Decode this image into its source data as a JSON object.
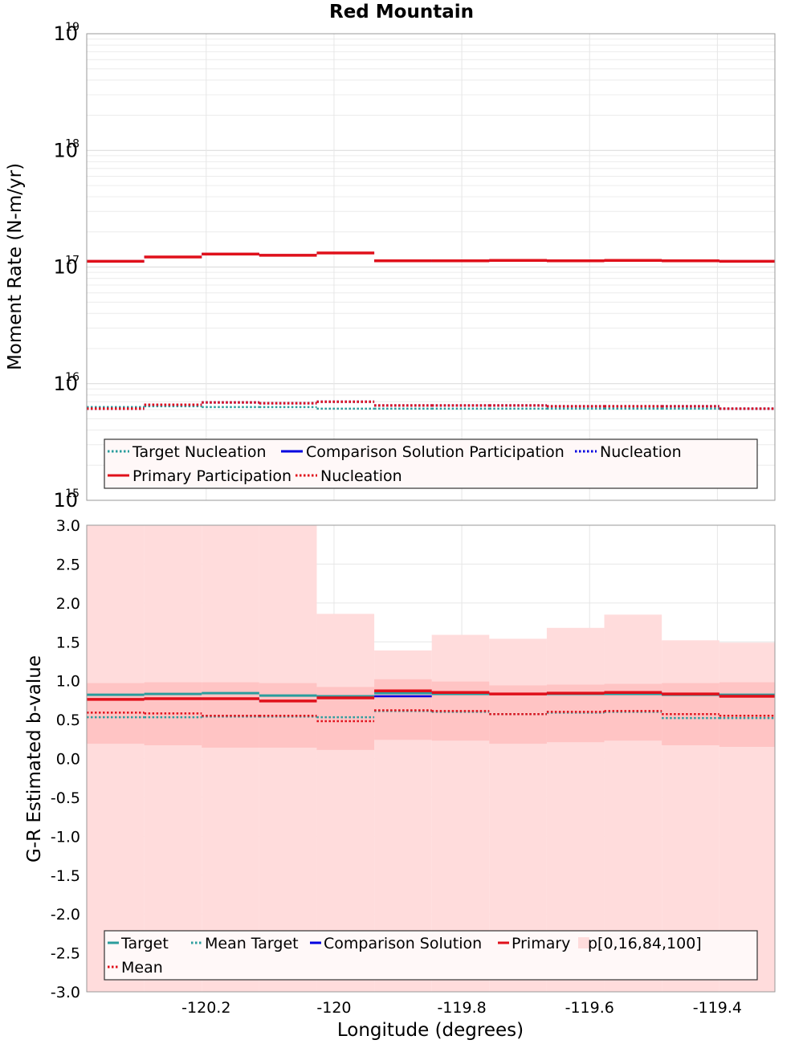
{
  "title": "Red Mountain",
  "colors": {
    "target": "#2a9d9d",
    "comparison": "#0000e0",
    "primary": "#e0101a",
    "band_outer": "#ffdcdc",
    "band_inner": "#ffc4c4",
    "legend_fill": "#fff8f8"
  },
  "chart_data": [
    {
      "type": "line",
      "title": "Red Mountain",
      "xlabel": "",
      "ylabel": "Moment Rate (N-m/yr)",
      "yscale": "log",
      "ylim": [
        1000000000000000.0,
        1e+19
      ],
      "xlim": [
        -120.387,
        -119.31
      ],
      "x_edges": [
        -120.387,
        -120.297,
        -120.207,
        -120.117,
        -120.027,
        -119.937,
        -119.847,
        -119.757,
        -119.667,
        -119.577,
        -119.487,
        -119.397,
        -119.31
      ],
      "y_ticks": [
        {
          "base": "10",
          "exp": "15",
          "value": 1000000000000000.0
        },
        {
          "base": "10",
          "exp": "16",
          "value": 1e+16
        },
        {
          "base": "10",
          "exp": "17",
          "value": 1e+17
        },
        {
          "base": "10",
          "exp": "18",
          "value": 1e+18
        },
        {
          "base": "10",
          "exp": "19",
          "value": 1e+19
        }
      ],
      "grid": true,
      "legend_position": "bottom",
      "legend": [
        {
          "label": "Target Nucleation",
          "color": "#2a9d9d",
          "style": "dotted"
        },
        {
          "label": "Comparison Solution Participation",
          "color": "#0000e0",
          "style": "solid"
        },
        {
          "label": "Nucleation",
          "color": "#0000e0",
          "style": "dotted"
        },
        {
          "label": "Primary Participation",
          "color": "#e0101a",
          "style": "solid"
        },
        {
          "label": "Nucleation",
          "color": "#e0101a",
          "style": "dotted"
        }
      ],
      "series": [
        {
          "name": "Target Nucleation",
          "style": "dotted",
          "color": "#2a9d9d",
          "values": [
            6300000000000000.0,
            6400000000000000.0,
            6300000000000000.0,
            6300000000000000.0,
            6100000000000000.0,
            6100000000000000.0,
            6100000000000000.0,
            6100000000000000.0,
            6100000000000000.0,
            6100000000000000.0,
            6100000000000000.0,
            6100000000000000.0
          ]
        },
        {
          "name": "Comparison Solution Participation",
          "style": "solid",
          "color": "#0000e0",
          "values": [
            1.12e+17,
            1.22e+17,
            1.29e+17,
            1.26e+17,
            1.32e+17,
            1.13e+17,
            1.13e+17,
            1.14e+17,
            1.13e+17,
            1.14e+17,
            1.13e+17,
            1.12e+17
          ]
        },
        {
          "name": "Nucleation",
          "style": "dotted",
          "color": "#0000e0",
          "values": [
            6100000000000000.0,
            6600000000000000.0,
            6900000000000000.0,
            6800000000000000.0,
            7000000000000000.0,
            6500000000000000.0,
            6500000000000000.0,
            6500000000000000.0,
            6400000000000000.0,
            6400000000000000.0,
            6400000000000000.0,
            6100000000000000.0
          ]
        },
        {
          "name": "Primary Participation",
          "style": "solid",
          "color": "#e0101a",
          "values": [
            1.12e+17,
            1.22e+17,
            1.29e+17,
            1.26e+17,
            1.32e+17,
            1.13e+17,
            1.13e+17,
            1.14e+17,
            1.13e+17,
            1.14e+17,
            1.13e+17,
            1.12e+17
          ]
        },
        {
          "name": "Nucleation",
          "style": "dotted",
          "color": "#e0101a",
          "values": [
            6100000000000000.0,
            6600000000000000.0,
            6900000000000000.0,
            6800000000000000.0,
            7000000000000000.0,
            6500000000000000.0,
            6500000000000000.0,
            6500000000000000.0,
            6400000000000000.0,
            6400000000000000.0,
            6400000000000000.0,
            6100000000000000.0
          ]
        }
      ]
    },
    {
      "type": "line",
      "title": "",
      "xlabel": "Longitude (degrees)",
      "ylabel": "G-R Estimated b-value",
      "ylim": [
        -3.0,
        3.0
      ],
      "xlim": [
        -120.387,
        -119.31
      ],
      "x_edges": [
        -120.387,
        -120.297,
        -120.207,
        -120.117,
        -120.027,
        -119.937,
        -119.847,
        -119.757,
        -119.667,
        -119.577,
        -119.487,
        -119.397,
        -119.31
      ],
      "x_ticks": [
        {
          "label": "-120.2",
          "value": -120.2
        },
        {
          "label": "-120",
          "value": -120.0
        },
        {
          "label": "-119.8",
          "value": -119.8
        },
        {
          "label": "-119.6",
          "value": -119.6
        },
        {
          "label": "-119.4",
          "value": -119.4
        }
      ],
      "y_ticks": [
        "3.0",
        "2.5",
        "2.0",
        "1.5",
        "1.0",
        "0.5",
        "0.0",
        "-0.5",
        "-1.0",
        "-1.5",
        "-2.0",
        "-2.5",
        "-3.0"
      ],
      "grid": true,
      "legend_position": "bottom",
      "legend": [
        {
          "label": "Target",
          "color": "#2a9d9d",
          "style": "solid"
        },
        {
          "label": "Mean Target",
          "color": "#2a9d9d",
          "style": "dotted"
        },
        {
          "label": "Comparison Solution",
          "color": "#0000e0",
          "style": "solid"
        },
        {
          "label": "Primary",
          "color": "#e0101a",
          "style": "solid"
        },
        {
          "label": "p[0,16,84,100]",
          "color": "#ffdcdc",
          "style": "fill"
        },
        {
          "label": "Mean",
          "color": "#e0101a",
          "style": "dotted"
        }
      ],
      "bands": {
        "p0": [
          -3.0,
          -3.0,
          -3.0,
          -3.0,
          -3.0,
          -3.0,
          -3.0,
          -3.0,
          -3.0,
          -3.0,
          -3.0,
          -3.0
        ],
        "p16": [
          0.19,
          0.17,
          0.14,
          0.14,
          0.11,
          0.24,
          0.23,
          0.19,
          0.21,
          0.23,
          0.17,
          0.15
        ],
        "p84": [
          0.97,
          0.98,
          0.98,
          0.97,
          0.92,
          1.02,
          0.99,
          0.94,
          0.95,
          0.96,
          0.97,
          0.98
        ],
        "p100": [
          3.0,
          3.0,
          3.0,
          3.0,
          1.86,
          1.39,
          1.59,
          1.54,
          1.68,
          1.85,
          1.52,
          1.49
        ]
      },
      "series": [
        {
          "name": "Target",
          "style": "solid",
          "color": "#2a9d9d",
          "values": [
            0.82,
            0.83,
            0.84,
            0.81,
            0.8,
            0.84,
            0.83,
            0.83,
            0.83,
            0.83,
            0.82,
            0.82
          ]
        },
        {
          "name": "Mean Target",
          "style": "dotted",
          "color": "#2a9d9d",
          "values": [
            0.53,
            0.53,
            0.54,
            0.54,
            0.53,
            0.61,
            0.6,
            0.57,
            0.59,
            0.6,
            0.52,
            0.52
          ]
        },
        {
          "name": "Comparison Solution",
          "style": "solid",
          "color": "#0000e0",
          "values": [
            0.76,
            0.77,
            0.77,
            0.74,
            0.78,
            0.8,
            0.85,
            0.83,
            0.84,
            0.85,
            0.83,
            0.8
          ]
        },
        {
          "name": "Primary",
          "style": "solid",
          "color": "#e0101a",
          "values": [
            0.76,
            0.77,
            0.77,
            0.74,
            0.78,
            0.87,
            0.85,
            0.83,
            0.84,
            0.85,
            0.83,
            0.8
          ]
        },
        {
          "name": "Mean",
          "style": "dotted",
          "color": "#e0101a",
          "values": [
            0.59,
            0.58,
            0.55,
            0.55,
            0.48,
            0.62,
            0.61,
            0.57,
            0.6,
            0.61,
            0.57,
            0.55
          ]
        }
      ]
    }
  ]
}
